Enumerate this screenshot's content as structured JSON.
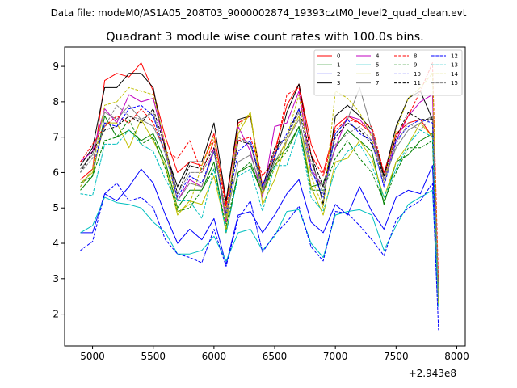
{
  "suptitle": "Data file: modeM0/AS1A05_208T03_9000002874_19393cztM0_level2_quad_clean.evt",
  "chart_data": {
    "type": "line",
    "title": "Quadrant 3 module wise count rates with 100.0s bins.",
    "xlabel": "",
    "ylabel": "",
    "x_offset_label": "+2.943e8",
    "xlim": [
      4770,
      8070
    ],
    "ylim": [
      1.1,
      9.55
    ],
    "xticks": [
      5000,
      5500,
      6000,
      6500,
      7000,
      7500,
      8000
    ],
    "yticks": [
      2,
      3,
      4,
      5,
      6,
      7,
      8,
      9
    ],
    "legend_position": "top-right",
    "x": [
      4900,
      5000,
      5100,
      5200,
      5300,
      5400,
      5500,
      5600,
      5700,
      5800,
      5900,
      6000,
      6100,
      6200,
      6300,
      6400,
      6500,
      6600,
      6700,
      6800,
      6900,
      7000,
      7100,
      7200,
      7300,
      7400,
      7500,
      7600,
      7700,
      7800,
      7850
    ],
    "series": [
      {
        "name": "0",
        "color": "#ff0000",
        "dash": "solid",
        "values": [
          5.8,
          6.1,
          8.6,
          8.8,
          8.7,
          9.1,
          8.3,
          7.0,
          6.0,
          6.3,
          6.2,
          7.1,
          5.1,
          7.4,
          7.6,
          5.6,
          6.6,
          7.9,
          8.5,
          6.8,
          6.0,
          7.3,
          7.6,
          7.4,
          7.1,
          6.0,
          7.1,
          7.4,
          7.5,
          7.0,
          2.7
        ]
      },
      {
        "name": "1",
        "color": "#008000",
        "dash": "solid",
        "values": [
          5.5,
          5.9,
          7.6,
          7.0,
          7.2,
          6.9,
          7.1,
          6.3,
          5.0,
          5.5,
          5.5,
          6.3,
          4.3,
          6.0,
          6.2,
          5.4,
          6.3,
          6.7,
          7.3,
          5.6,
          5.7,
          6.7,
          7.2,
          6.9,
          6.6,
          5.1,
          6.3,
          6.5,
          6.9,
          7.1,
          2.5
        ]
      },
      {
        "name": "2",
        "color": "#0000ff",
        "dash": "solid",
        "values": [
          4.3,
          4.3,
          5.4,
          5.2,
          5.6,
          6.1,
          5.7,
          4.8,
          4.0,
          4.4,
          4.1,
          4.7,
          3.4,
          4.8,
          4.9,
          4.3,
          4.8,
          5.4,
          5.8,
          4.6,
          4.3,
          5.1,
          4.8,
          5.6,
          4.9,
          4.4,
          5.3,
          5.5,
          5.4,
          6.2,
          2.4
        ]
      },
      {
        "name": "3",
        "color": "#000000",
        "dash": "solid",
        "values": [
          6.2,
          6.7,
          8.4,
          8.4,
          8.8,
          8.8,
          8.4,
          6.6,
          5.6,
          6.3,
          6.3,
          7.4,
          5.2,
          7.5,
          7.6,
          5.5,
          6.4,
          7.7,
          8.5,
          6.5,
          5.1,
          7.6,
          7.9,
          7.6,
          7.2,
          5.9,
          7.3,
          8.1,
          8.3,
          7.5,
          2.5
        ]
      },
      {
        "name": "4",
        "color": "#c000c0",
        "dash": "solid",
        "values": [
          6.3,
          6.6,
          7.8,
          7.4,
          8.2,
          8.0,
          8.1,
          6.7,
          5.2,
          5.8,
          5.6,
          6.7,
          4.6,
          7.3,
          6.6,
          5.3,
          7.3,
          7.4,
          8.3,
          6.1,
          5.6,
          6.7,
          7.6,
          7.5,
          7.1,
          5.8,
          6.9,
          7.6,
          8.0,
          8.2,
          2.6
        ]
      },
      {
        "name": "5",
        "color": "#00bfbf",
        "dash": "solid",
        "values": [
          4.3,
          4.5,
          5.3,
          5.15,
          5.1,
          5.0,
          4.6,
          4.3,
          3.7,
          3.7,
          3.8,
          4.2,
          3.5,
          4.3,
          4.4,
          3.8,
          4.2,
          4.9,
          4.95,
          4.0,
          3.6,
          4.8,
          4.9,
          4.95,
          4.8,
          3.8,
          4.5,
          5.1,
          5.3,
          5.5,
          2.2
        ]
      },
      {
        "name": "6",
        "color": "#bfbf00",
        "dash": "solid",
        "values": [
          5.7,
          6.0,
          7.4,
          7.4,
          6.7,
          7.5,
          6.9,
          6.2,
          4.8,
          5.2,
          5.1,
          5.9,
          4.4,
          7.1,
          7.7,
          5.1,
          5.8,
          6.9,
          7.6,
          5.6,
          4.8,
          6.3,
          6.4,
          6.9,
          6.4,
          5.3,
          6.3,
          6.8,
          7.4,
          7.0,
          2.3
        ]
      },
      {
        "name": "7",
        "color": "#808080",
        "dash": "solid",
        "values": [
          6.1,
          6.5,
          7.7,
          7.5,
          7.9,
          7.5,
          7.3,
          6.6,
          5.2,
          5.7,
          5.6,
          6.6,
          4.7,
          6.3,
          6.5,
          5.5,
          6.3,
          6.9,
          7.5,
          6.0,
          5.6,
          7.1,
          7.5,
          8.4,
          7.2,
          5.8,
          6.7,
          7.2,
          7.4,
          7.6,
          2.5
        ]
      },
      {
        "name": "8",
        "color": "#ff0000",
        "dash": "dashed",
        "values": [
          6.3,
          6.8,
          7.3,
          7.6,
          7.4,
          7.8,
          7.4,
          6.6,
          6.4,
          6.9,
          6.0,
          6.9,
          5.0,
          6.9,
          7.0,
          5.9,
          6.4,
          8.2,
          8.4,
          6.5,
          5.9,
          7.2,
          7.5,
          7.4,
          7.3,
          6.0,
          7.0,
          7.6,
          8.3,
          9.1,
          2.8
        ]
      },
      {
        "name": "9",
        "color": "#008000",
        "dash": "dashed",
        "values": [
          5.7,
          5.9,
          6.9,
          7.0,
          7.5,
          6.8,
          7.0,
          6.1,
          4.9,
          5.0,
          5.5,
          6.1,
          4.5,
          6.0,
          6.3,
          5.4,
          6.2,
          6.6,
          7.3,
          5.5,
          5.5,
          6.4,
          6.9,
          6.4,
          6.0,
          5.2,
          6.0,
          6.7,
          6.7,
          6.9,
          2.4
        ]
      },
      {
        "name": "10",
        "color": "#0000ff",
        "dash": "dashed",
        "values": [
          3.8,
          4.05,
          5.4,
          5.7,
          5.2,
          5.3,
          5.0,
          4.1,
          3.7,
          3.6,
          3.45,
          4.4,
          3.35,
          4.7,
          5.2,
          3.75,
          4.25,
          4.6,
          5.05,
          3.9,
          3.5,
          4.9,
          4.85,
          4.5,
          4.1,
          3.65,
          4.65,
          5.0,
          5.2,
          5.7,
          1.55
        ]
      },
      {
        "name": "11",
        "color": "#000000",
        "dash": "dashed",
        "values": [
          6.0,
          6.6,
          7.2,
          7.3,
          7.6,
          7.4,
          7.8,
          6.7,
          5.4,
          6.2,
          6.1,
          6.7,
          4.8,
          6.9,
          6.8,
          5.6,
          6.7,
          7.0,
          7.8,
          6.5,
          5.6,
          7.0,
          7.4,
          7.2,
          6.8,
          5.9,
          7.0,
          7.7,
          7.5,
          7.5,
          2.5
        ]
      },
      {
        "name": "12",
        "color": "#0000ff",
        "dash": "dashed",
        "values": [
          5.6,
          6.1,
          7.4,
          7.3,
          7.8,
          7.9,
          7.6,
          6.5,
          5.3,
          5.9,
          5.7,
          6.6,
          4.8,
          6.6,
          6.9,
          5.6,
          6.5,
          7.1,
          7.8,
          6.1,
          5.3,
          7.1,
          7.5,
          7.1,
          6.9,
          5.6,
          6.9,
          7.3,
          7.5,
          7.4,
          2.5
        ]
      },
      {
        "name": "13",
        "color": "#00bfbf",
        "dash": "dashed",
        "values": [
          5.4,
          5.35,
          6.8,
          6.8,
          7.2,
          6.8,
          6.6,
          5.8,
          5.2,
          5.2,
          4.7,
          6.1,
          4.3,
          5.9,
          6.1,
          4.9,
          6.2,
          6.2,
          7.2,
          5.3,
          4.9,
          6.1,
          6.6,
          6.8,
          6.2,
          5.3,
          6.1,
          6.8,
          7.2,
          7.0,
          2.4
        ]
      },
      {
        "name": "14",
        "color": "#bfbf00",
        "dash": "dashed",
        "values": [
          5.6,
          6.1,
          7.9,
          8.0,
          8.4,
          8.3,
          8.2,
          6.8,
          4.9,
          5.1,
          6.2,
          7.0,
          4.7,
          7.3,
          7.7,
          5.4,
          6.1,
          7.0,
          8.2,
          5.9,
          5.0,
          8.3,
          8.1,
          7.7,
          7.0,
          5.7,
          7.2,
          8.1,
          8.4,
          8.8,
          2.3
        ]
      },
      {
        "name": "15",
        "color": "#808080",
        "dash": "dashed",
        "values": [
          6.0,
          6.4,
          7.3,
          7.9,
          7.6,
          7.5,
          7.7,
          6.5,
          5.4,
          6.0,
          6.0,
          6.6,
          4.9,
          7.0,
          6.8,
          5.5,
          6.6,
          7.0,
          7.7,
          6.3,
          5.4,
          6.8,
          7.1,
          7.3,
          6.9,
          5.7,
          6.8,
          7.4,
          7.2,
          7.6,
          2.4
        ]
      }
    ]
  }
}
